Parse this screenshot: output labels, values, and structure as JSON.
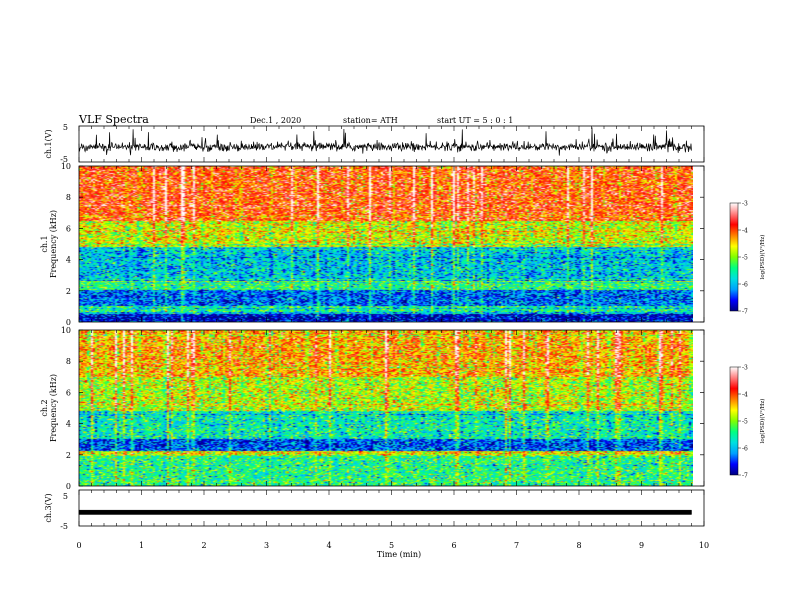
{
  "header": {
    "title": "VLF Spectra",
    "date": "Dec.1 , 2020",
    "station": "station= ATH",
    "start": "start  UT =  5 : 0 : 1"
  },
  "chart_data": [
    {
      "type": "line",
      "panel": "ch1-waveform",
      "ylabel": "ch.1(V)",
      "ylim": [
        -5,
        5
      ],
      "yticks": [
        "5",
        "-5"
      ],
      "xlim": [
        0,
        10
      ],
      "data_extent": [
        0,
        9.8
      ],
      "description_values": {
        "baseline": -0.8,
        "typical_amplitude": 1.2,
        "max_spike": 3.5
      }
    },
    {
      "type": "heatmap",
      "panel": "ch1-spectrogram",
      "ylabel": "ch.1\nFrequency (kHz)",
      "ylabel_lines": [
        "ch.1",
        "Frequency  (kHz)"
      ],
      "ylim": [
        0,
        10
      ],
      "yticks": [
        "0",
        "2",
        "4",
        "6",
        "8",
        "10"
      ],
      "xlim": [
        0,
        10
      ],
      "data_extent": [
        0,
        9.8
      ],
      "colorbar": {
        "label": "log(PSD)(V²/Hz)",
        "range": [
          -7,
          -3
        ],
        "ticks": [
          "-3",
          "-4",
          "-5",
          "-6",
          "-7"
        ],
        "colormap": [
          "#000080",
          "#0000ff",
          "#00a0ff",
          "#00e0e0",
          "#00ff80",
          "#80ff00",
          "#ffff00",
          "#ff8000",
          "#ff0000",
          "#ff8080",
          "#ffffff"
        ]
      },
      "bands_kHz": [
        {
          "from": 0,
          "to": 0.5,
          "level": -6.8
        },
        {
          "from": 0.5,
          "to": 1.0,
          "level": -5.5
        },
        {
          "from": 1.0,
          "to": 2.0,
          "level": -6.3
        },
        {
          "from": 2.0,
          "to": 2.6,
          "level": -5.4
        },
        {
          "from": 2.6,
          "to": 4.8,
          "level": -5.9
        },
        {
          "from": 4.8,
          "to": 6.5,
          "level": -4.7
        },
        {
          "from": 6.5,
          "to": 10.0,
          "level": -3.9
        }
      ]
    },
    {
      "type": "heatmap",
      "panel": "ch2-spectrogram",
      "ylabel_lines": [
        "ch.2",
        "Frequency  (kHz)"
      ],
      "ylim": [
        0,
        10
      ],
      "yticks": [
        "0",
        "2",
        "4",
        "6",
        "8",
        "10"
      ],
      "xlim": [
        0,
        10
      ],
      "data_extent": [
        0,
        9.8
      ],
      "colorbar": {
        "label": "log(PSD)(V²/Hz)",
        "range": [
          -7,
          -3
        ],
        "ticks": [
          "-3",
          "-4",
          "-5",
          "-6",
          "-7"
        ]
      },
      "bands_kHz": [
        {
          "from": 0,
          "to": 1.9,
          "level": -5.4
        },
        {
          "from": 1.9,
          "to": 2.2,
          "level": -4.6
        },
        {
          "from": 2.2,
          "to": 3.0,
          "level": -6.4
        },
        {
          "from": 3.0,
          "to": 4.8,
          "level": -5.6
        },
        {
          "from": 4.8,
          "to": 7.0,
          "level": -4.8
        },
        {
          "from": 7.0,
          "to": 10.0,
          "level": -4.3
        }
      ]
    },
    {
      "type": "line",
      "panel": "ch3-waveform",
      "ylabel": "ch.3(V)",
      "ylim": [
        -5,
        5
      ],
      "yticks": [
        "5",
        "-5"
      ],
      "xlim": [
        0,
        10
      ],
      "data_extent": [
        0,
        9.8
      ],
      "description_values": {
        "baseline": -1.2,
        "thickness": 0.6
      }
    }
  ],
  "xaxis": {
    "label": "Time  (min)",
    "ticks": [
      "0",
      "1",
      "2",
      "3",
      "4",
      "5",
      "6",
      "7",
      "8",
      "9",
      "10"
    ]
  }
}
